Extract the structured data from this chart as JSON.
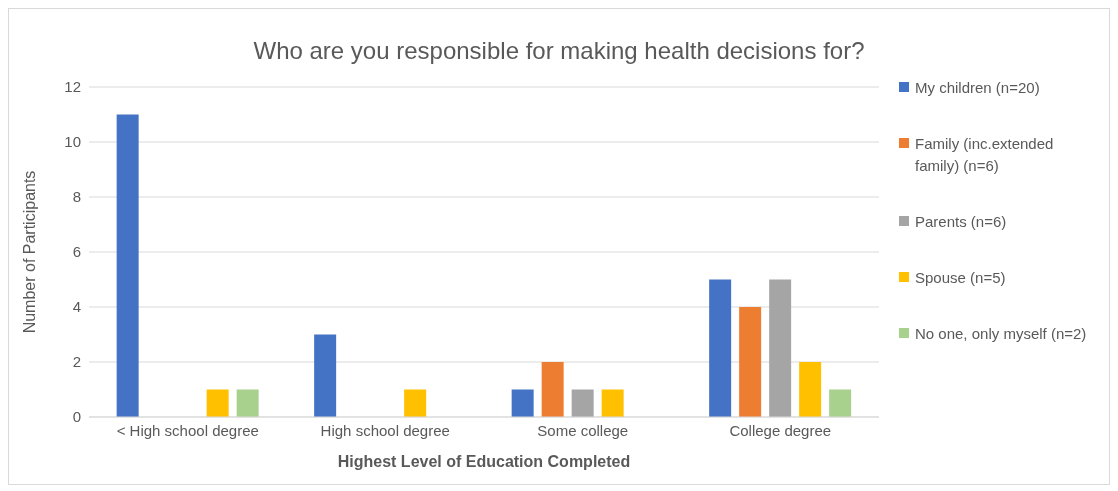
{
  "chart_data": {
    "type": "bar",
    "title": "Who are you responsible for making health decisions for?",
    "xlabel": "Highest Level of Education Completed",
    "ylabel": "Number of Participants",
    "categories": [
      "< High school degree",
      "High school degree",
      "Some college",
      "College degree"
    ],
    "series": [
      {
        "name": "My children (n=20)",
        "color": "#4472c4",
        "values": [
          11,
          3,
          1,
          5
        ]
      },
      {
        "name": "Family (inc.extended family) (n=6)",
        "color": "#ed7d31",
        "values": [
          0,
          0,
          2,
          4
        ]
      },
      {
        "name": "Parents (n=6)",
        "color": "#a5a5a5",
        "values": [
          0,
          0,
          1,
          5
        ]
      },
      {
        "name": "Spouse (n=5)",
        "color": "#ffc000",
        "values": [
          1,
          1,
          1,
          2
        ]
      },
      {
        "name": "No one, only myself (n=2)",
        "color": "#a9d18e",
        "values": [
          1,
          0,
          0,
          1
        ]
      }
    ],
    "ylim": [
      0,
      12
    ],
    "yticks": [
      0,
      2,
      4,
      6,
      8,
      10,
      12
    ],
    "grid": "y",
    "legend": "right"
  }
}
